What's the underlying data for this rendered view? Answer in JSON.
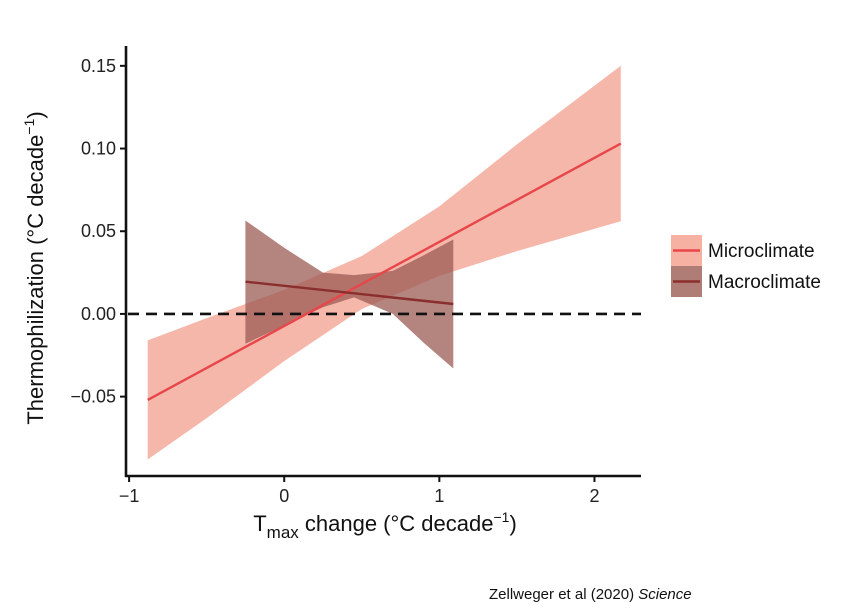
{
  "chart_data": {
    "type": "line",
    "xlabel": {
      "main": "T",
      "sub": "max",
      "rest": " change (°C  decade",
      "sup": "−1",
      "close": ")"
    },
    "ylabel": {
      "main": "Thermophilization (°C  decade",
      "sup": "−1",
      "close": ")"
    },
    "xlim": [
      -1.02,
      2.3
    ],
    "ylim": [
      -0.098,
      0.162
    ],
    "x_ticks": [
      -1,
      0,
      1,
      2
    ],
    "x_tick_labels": [
      "−1",
      "0",
      "1",
      "2"
    ],
    "y_ticks": [
      -0.05,
      0.0,
      0.05,
      0.1,
      0.15
    ],
    "y_tick_labels": [
      "−0.05",
      "0.00",
      "0.05",
      "0.10",
      "0.15"
    ],
    "reference_line": {
      "y": 0.0,
      "style": "dashed"
    },
    "grid": false,
    "legend_position": "right",
    "series": [
      {
        "name": "Microclimate",
        "line_color": "#e8474a",
        "band_color": "#f4a393",
        "x": [
          -0.88,
          -0.5,
          0.0,
          0.5,
          1.0,
          1.5,
          2.17
        ],
        "y": [
          -0.052,
          -0.0327,
          -0.0072,
          0.0183,
          0.0438,
          0.0693,
          0.103
        ],
        "lower": [
          -0.088,
          -0.063,
          -0.0285,
          0.003,
          0.023,
          0.038,
          0.056
        ],
        "upper": [
          -0.016,
          -0.0025,
          0.0145,
          0.035,
          0.065,
          0.1025,
          0.15
        ]
      },
      {
        "name": "Macroclimate",
        "line_color": "#8b2e2e",
        "band_color": "#9b5b54",
        "x": [
          -0.25,
          0.0,
          0.25,
          0.45,
          0.7,
          0.9,
          1.09
        ],
        "y": [
          0.0195,
          0.0165,
          0.0135,
          0.0115,
          0.0095,
          0.0075,
          0.006
        ],
        "lower": [
          -0.018,
          -0.007,
          0.004,
          0.01,
          0.0,
          -0.0175,
          -0.033
        ],
        "upper": [
          0.0565,
          0.04,
          0.025,
          0.0235,
          0.026,
          0.0355,
          0.045
        ]
      }
    ]
  },
  "credit": {
    "authors": "Zellweger et al (2020) ",
    "journal": "Science"
  }
}
